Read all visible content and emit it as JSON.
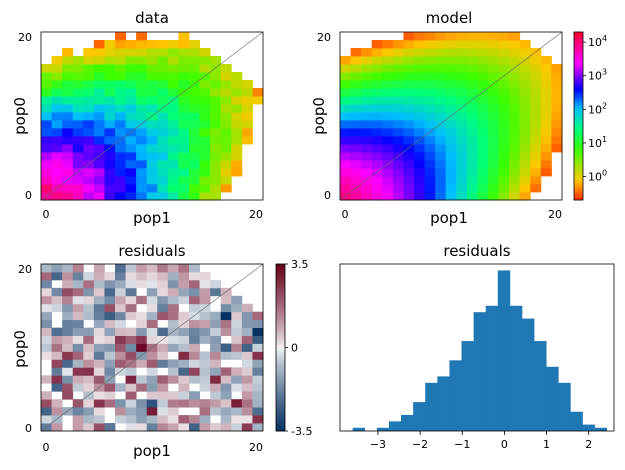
{
  "chart_data": [
    {
      "type": "heatmap",
      "title": "data",
      "xlabel": "pop1",
      "ylabel": "pop0",
      "x_ticks": [
        "0",
        "20"
      ],
      "y_ticks": [
        "0",
        "20"
      ],
      "grid_size": 21,
      "scale": "log",
      "diagonal": true,
      "min_count": 0.3,
      "mask": "sample-empty-cells"
    },
    {
      "type": "heatmap",
      "title": "model",
      "xlabel": "pop1",
      "ylabel": "pop0",
      "x_ticks": [
        "0",
        "20"
      ],
      "y_ticks": [
        "0",
        "20"
      ],
      "grid_size": 21,
      "scale": "log",
      "diagonal": true,
      "min_count": 0.3,
      "mask": "upper-corner",
      "colorbar": {
        "scale": "log",
        "range": [
          0.2,
          20000
        ],
        "ticks": [
          {
            "base": "10",
            "exp": "4",
            "value": 10000
          },
          {
            "base": "10",
            "exp": "3",
            "value": 1000
          },
          {
            "base": "10",
            "exp": "2",
            "value": 100
          },
          {
            "base": "10",
            "exp": "1",
            "value": 10
          },
          {
            "base": "10",
            "exp": "0",
            "value": 1
          }
        ]
      }
    },
    {
      "type": "heatmap",
      "title": "residuals",
      "xlabel": "pop1",
      "ylabel": "pop0",
      "x_ticks": [
        "0",
        "20"
      ],
      "y_ticks": [
        "0",
        "20"
      ],
      "grid_size": 21,
      "scale": "linear",
      "diagonal": true,
      "colorbar": {
        "range": [
          -3.5,
          3.5
        ],
        "ticks": [
          {
            "label": "3.5",
            "value": 3.5
          },
          {
            "label": "0",
            "value": 0
          },
          {
            "label": "-3.5",
            "value": -3.5
          }
        ]
      }
    },
    {
      "type": "bar",
      "title": "residuals",
      "x_ticks": [
        "−3",
        "−2",
        "−1",
        "0",
        "1",
        "2"
      ],
      "x_tick_values": [
        -3,
        -2,
        -1,
        0,
        1,
        2
      ],
      "xlim": [
        -3.9,
        2.6
      ],
      "ylim": [
        0,
        52
      ],
      "bin_start": -3.6,
      "bin_width": 0.287,
      "counts": [
        1,
        0,
        1,
        3,
        5,
        9,
        15,
        17,
        22,
        28,
        37,
        39,
        50,
        39,
        35,
        28,
        20,
        15,
        6,
        2,
        1
      ],
      "color": "#1f77b4"
    }
  ]
}
